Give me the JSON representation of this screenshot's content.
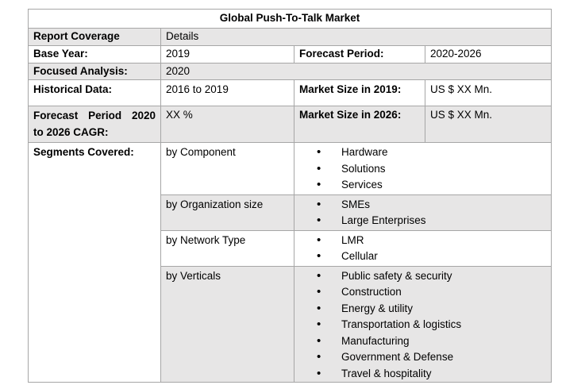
{
  "title": "Global Push-To-Talk Market",
  "header": {
    "col1": "Report Coverage",
    "col2": "Details"
  },
  "base_year": {
    "label": "Base Year:",
    "value": "2019",
    "label2": "Forecast Period:",
    "value2": "2020-2026"
  },
  "focused": {
    "label": "Focused Analysis:",
    "value": "2020"
  },
  "historical": {
    "label": "Historical Data:",
    "value": "2016 to 2019",
    "label2": "Market Size in 2019:",
    "value2": "US $ XX Mn."
  },
  "cagr": {
    "label_line1": "Forecast Period 2020",
    "label_line2": "to 2026 CAGR:",
    "value": "XX %",
    "label2": "Market Size in 2026:",
    "value2": "US $ XX Mn."
  },
  "segments": {
    "label": "Segments Covered:",
    "groups": [
      {
        "name": "by Component",
        "items": [
          "Hardware",
          "Solutions",
          "Services"
        ]
      },
      {
        "name": "by Organization size",
        "items": [
          "SMEs",
          "Large Enterprises"
        ]
      },
      {
        "name": "by Network Type",
        "items": [
          "LMR",
          "Cellular"
        ]
      },
      {
        "name": "by Verticals",
        "items": [
          "Public safety & security",
          "Construction",
          "Energy & utility",
          "Transportation & logistics",
          "Manufacturing",
          "Government & Defense",
          "Travel & hospitality"
        ]
      }
    ]
  }
}
